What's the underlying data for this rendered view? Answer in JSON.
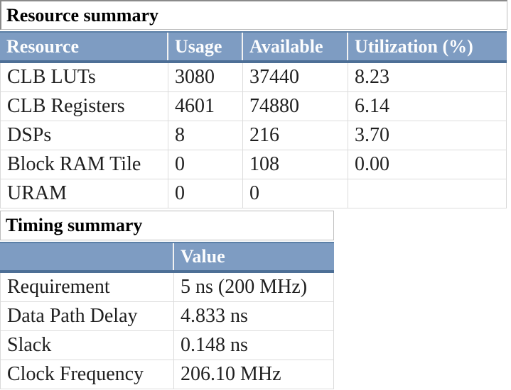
{
  "resource_table": {
    "title": "Resource summary",
    "headers": [
      "Resource",
      "Usage",
      "Available",
      "Utilization (%)"
    ],
    "rows": [
      {
        "resource": "CLB LUTs",
        "usage": "3080",
        "available": "37440",
        "utilization": "8.23"
      },
      {
        "resource": "CLB Registers",
        "usage": "4601",
        "available": "74880",
        "utilization": "6.14"
      },
      {
        "resource": "DSPs",
        "usage": "8",
        "available": "216",
        "utilization": "3.70"
      },
      {
        "resource": "Block RAM Tile",
        "usage": "0",
        "available": "108",
        "utilization": "0.00"
      },
      {
        "resource": "URAM",
        "usage": "0",
        "available": "0",
        "utilization": ""
      }
    ]
  },
  "timing_table": {
    "title": "Timing summary",
    "headers": [
      "",
      "Value"
    ],
    "rows": [
      {
        "label": "Requirement",
        "value": "5 ns (200 MHz)"
      },
      {
        "label": "Data Path Delay",
        "value": "4.833 ns"
      },
      {
        "label": "Slack",
        "value": "0.148 ns"
      },
      {
        "label": "Clock Frequency",
        "value": "206.10 MHz"
      }
    ]
  },
  "colors": {
    "header_background": "#7e9cc2",
    "header_border_dark": "#4d6f96",
    "header_text": "#fcfdfe",
    "cell_border": "#dcdcdc",
    "body_text": "#1f1f1f"
  }
}
